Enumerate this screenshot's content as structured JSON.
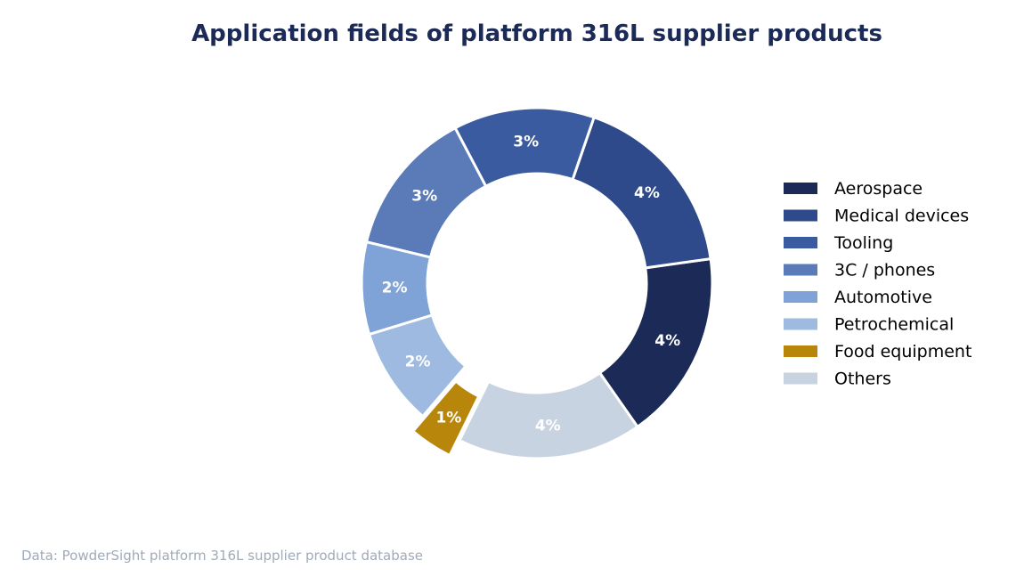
{
  "chart_data": {
    "type": "pie",
    "variant": "donut",
    "title": "Application fields of platform 316L supplier products",
    "categories": [
      "Aerospace",
      "Medical devices",
      "Tooling",
      "3C / phones",
      "Automotive",
      "Petrochemical",
      "Food equipment",
      "Others"
    ],
    "values": [
      17.5,
      17.5,
      13,
      13.5,
      8.5,
      9,
      4,
      17
    ],
    "labels": [
      "4%",
      "4%",
      "3%",
      "3%",
      "2%",
      "2%",
      "1%",
      "4%"
    ],
    "colors": [
      "#1b2a56",
      "#2e4a8a",
      "#3b5ba0",
      "#5b7bb8",
      "#7fa3d6",
      "#9fbae0",
      "#b8860b",
      "#c8d3e2"
    ],
    "exploded": [
      "Food equipment"
    ],
    "legend_position": "right",
    "start_angle_deg": -55,
    "direction": "counterclockwise",
    "title_color": "#1b2a56",
    "source_color": "#a0aab8"
  },
  "source_note": "Data: PowderSight platform 316L supplier product database"
}
